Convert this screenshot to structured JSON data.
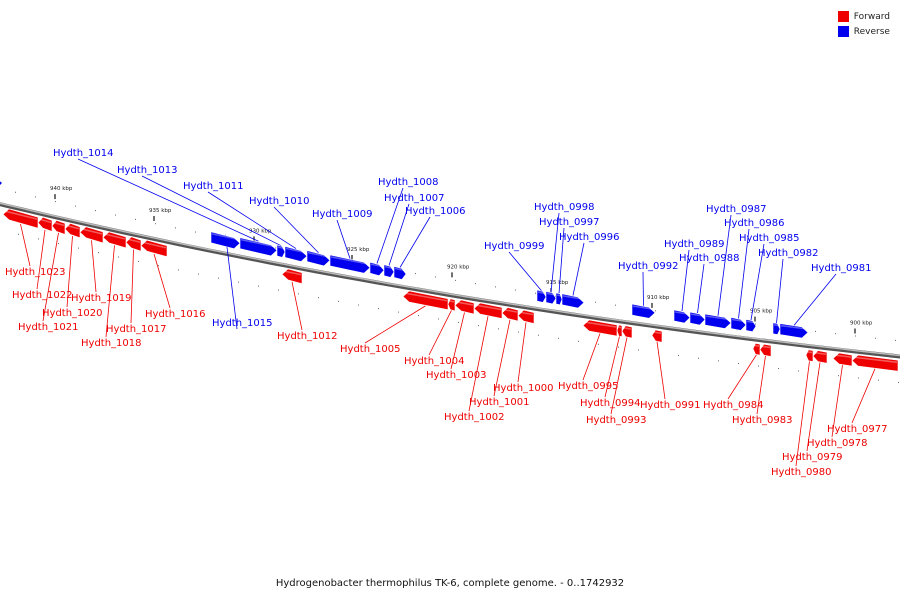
{
  "legend": {
    "items": [
      {
        "label": "Forward",
        "color": "#ee0000"
      },
      {
        "label": "Reverse",
        "color": "#0000ee"
      }
    ]
  },
  "caption": "Hydrogenobacter thermophilus TK-6, complete genome. - 0..1742932",
  "colors": {
    "forward": "#ee0000",
    "reverse": "#0000ee",
    "backbone": "#777777"
  },
  "scale_ticks": [
    {
      "label": "940 kbp"
    },
    {
      "label": "935 kbp"
    },
    {
      "label": "930 kbp"
    },
    {
      "label": "925 kbp"
    },
    {
      "label": "920 kbp"
    },
    {
      "label": "915 kbp"
    },
    {
      "label": "910 kbp"
    },
    {
      "label": "905 kbp"
    },
    {
      "label": "900 kbp"
    }
  ],
  "genes": [
    {
      "name": "Hydth_1023",
      "strand": "forward"
    },
    {
      "name": "Hydth_1022",
      "strand": "forward"
    },
    {
      "name": "Hydth_1021",
      "strand": "forward"
    },
    {
      "name": "Hydth_1020",
      "strand": "forward"
    },
    {
      "name": "Hydth_1019",
      "strand": "forward"
    },
    {
      "name": "Hydth_1018",
      "strand": "forward"
    },
    {
      "name": "Hydth_1017",
      "strand": "forward"
    },
    {
      "name": "Hydth_1016",
      "strand": "forward"
    },
    {
      "name": "Hydth_1015",
      "strand": "reverse"
    },
    {
      "name": "Hydth_1014",
      "strand": "reverse"
    },
    {
      "name": "Hydth_1013",
      "strand": "reverse"
    },
    {
      "name": "Hydth_1012",
      "strand": "forward"
    },
    {
      "name": "Hydth_1011",
      "strand": "reverse"
    },
    {
      "name": "Hydth_1010",
      "strand": "reverse"
    },
    {
      "name": "Hydth_1009",
      "strand": "reverse"
    },
    {
      "name": "Hydth_1008",
      "strand": "reverse"
    },
    {
      "name": "Hydth_1007",
      "strand": "reverse"
    },
    {
      "name": "Hydth_1006",
      "strand": "reverse"
    },
    {
      "name": "Hydth_1005",
      "strand": "forward"
    },
    {
      "name": "Hydth_1004",
      "strand": "forward"
    },
    {
      "name": "Hydth_1003",
      "strand": "forward"
    },
    {
      "name": "Hydth_1002",
      "strand": "forward"
    },
    {
      "name": "Hydth_1001",
      "strand": "forward"
    },
    {
      "name": "Hydth_1000",
      "strand": "forward"
    },
    {
      "name": "Hydth_0999",
      "strand": "reverse"
    },
    {
      "name": "Hydth_0998",
      "strand": "reverse"
    },
    {
      "name": "Hydth_0997",
      "strand": "reverse"
    },
    {
      "name": "Hydth_0996",
      "strand": "reverse"
    },
    {
      "name": "Hydth_0995",
      "strand": "forward"
    },
    {
      "name": "Hydth_0994",
      "strand": "forward"
    },
    {
      "name": "Hydth_0993",
      "strand": "forward"
    },
    {
      "name": "Hydth_0992",
      "strand": "reverse"
    },
    {
      "name": "Hydth_0991",
      "strand": "forward"
    },
    {
      "name": "Hydth_0989",
      "strand": "reverse"
    },
    {
      "name": "Hydth_0988",
      "strand": "reverse"
    },
    {
      "name": "Hydth_0987",
      "strand": "reverse"
    },
    {
      "name": "Hydth_0986",
      "strand": "reverse"
    },
    {
      "name": "Hydth_0985",
      "strand": "reverse"
    },
    {
      "name": "Hydth_0984",
      "strand": "forward"
    },
    {
      "name": "Hydth_0983",
      "strand": "forward"
    },
    {
      "name": "Hydth_0982",
      "strand": "reverse"
    },
    {
      "name": "Hydth_0981",
      "strand": "reverse"
    },
    {
      "name": "Hydth_0980",
      "strand": "forward"
    },
    {
      "name": "Hydth_0979",
      "strand": "forward"
    },
    {
      "name": "Hydth_0978",
      "strand": "forward"
    },
    {
      "name": "Hydth_0977",
      "strand": "forward"
    }
  ]
}
